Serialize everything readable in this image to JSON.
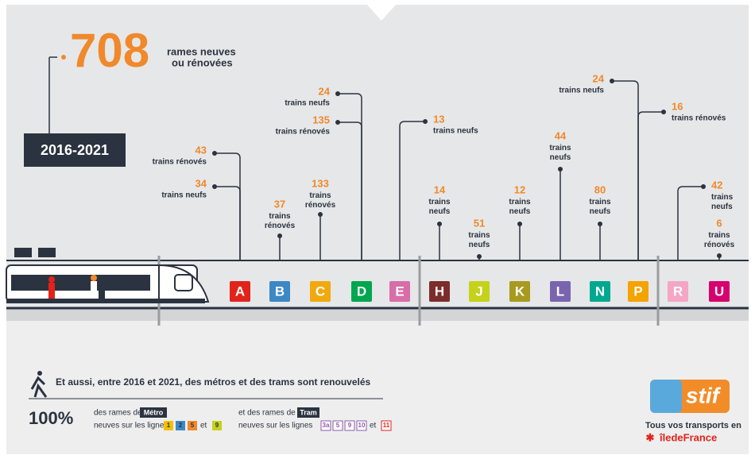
{
  "header": {
    "total": "708",
    "text": [
      "rames neuves",
      "ou rénovées"
    ],
    "period": "2016-2021"
  },
  "lines": [
    {
      "letter": "A",
      "color": "#e2231a",
      "notes": [
        {
          "value": "43",
          "label": "trains rénovés"
        },
        {
          "value": "34",
          "label": "trains neufs"
        }
      ]
    },
    {
      "letter": "B",
      "color": "#3c87c6",
      "notes": [
        {
          "value": "37",
          "label": "trains rénovés"
        }
      ]
    },
    {
      "letter": "C",
      "color": "#f1a90f",
      "notes": [
        {
          "value": "133",
          "label": "trains rénovés"
        }
      ]
    },
    {
      "letter": "D",
      "color": "#00a650",
      "notes": [
        {
          "value": "24",
          "label": "trains neufs"
        },
        {
          "value": "135",
          "label": "trains rénovés"
        }
      ]
    },
    {
      "letter": "E",
      "color": "#d86ea8",
      "notes": [
        {
          "value": "13",
          "label": "trains neufs"
        }
      ]
    },
    {
      "letter": "H",
      "color": "#7b2d2b",
      "notes": [
        {
          "value": "14",
          "label": "trains neufs"
        }
      ]
    },
    {
      "letter": "J",
      "color": "#c5d21a",
      "notes": [
        {
          "value": "51",
          "label": "trains neufs"
        }
      ]
    },
    {
      "letter": "K",
      "color": "#a89a1f",
      "notes": [
        {
          "value": "12",
          "label": "trains neufs"
        }
      ]
    },
    {
      "letter": "L",
      "color": "#7a64b0",
      "notes": [
        {
          "value": "44",
          "label": "trains neufs"
        }
      ]
    },
    {
      "letter": "N",
      "color": "#00a88f",
      "notes": [
        {
          "value": "80",
          "label": "trains neufs"
        }
      ]
    },
    {
      "letter": "P",
      "color": "#f5a300",
      "notes": [
        {
          "value": "24",
          "label": "trains neufs"
        },
        {
          "value": "16",
          "label": "trains rénovés"
        }
      ]
    },
    {
      "letter": "R",
      "color": "#f4a6c4",
      "notes": [
        {
          "value": "42",
          "label": "trains neufs"
        }
      ]
    },
    {
      "letter": "U",
      "color": "#d6006e",
      "notes": [
        {
          "value": "6",
          "label": "trains rénovés"
        }
      ]
    }
  ],
  "footer": {
    "headline": "Et aussi, entre 2016 et 2021, des métros et des trams sont renouvelés",
    "share": "100%",
    "metro": {
      "intro": "des rames de",
      "tag": "Métro",
      "lines_text": "neuves sur les lignes",
      "lines": [
        "1",
        "2",
        "5"
      ],
      "and": "et",
      "last": "9"
    },
    "tram": {
      "intro": "et des rames de",
      "tag": "Tram",
      "lines_text": "neuves sur les lignes",
      "lines": [
        "3a",
        "5",
        "9",
        "10"
      ],
      "and": "et",
      "last": "11"
    }
  },
  "logo": {
    "name": "stif",
    "tagline": "Tous vos transports en",
    "region": "îledeFrance"
  }
}
